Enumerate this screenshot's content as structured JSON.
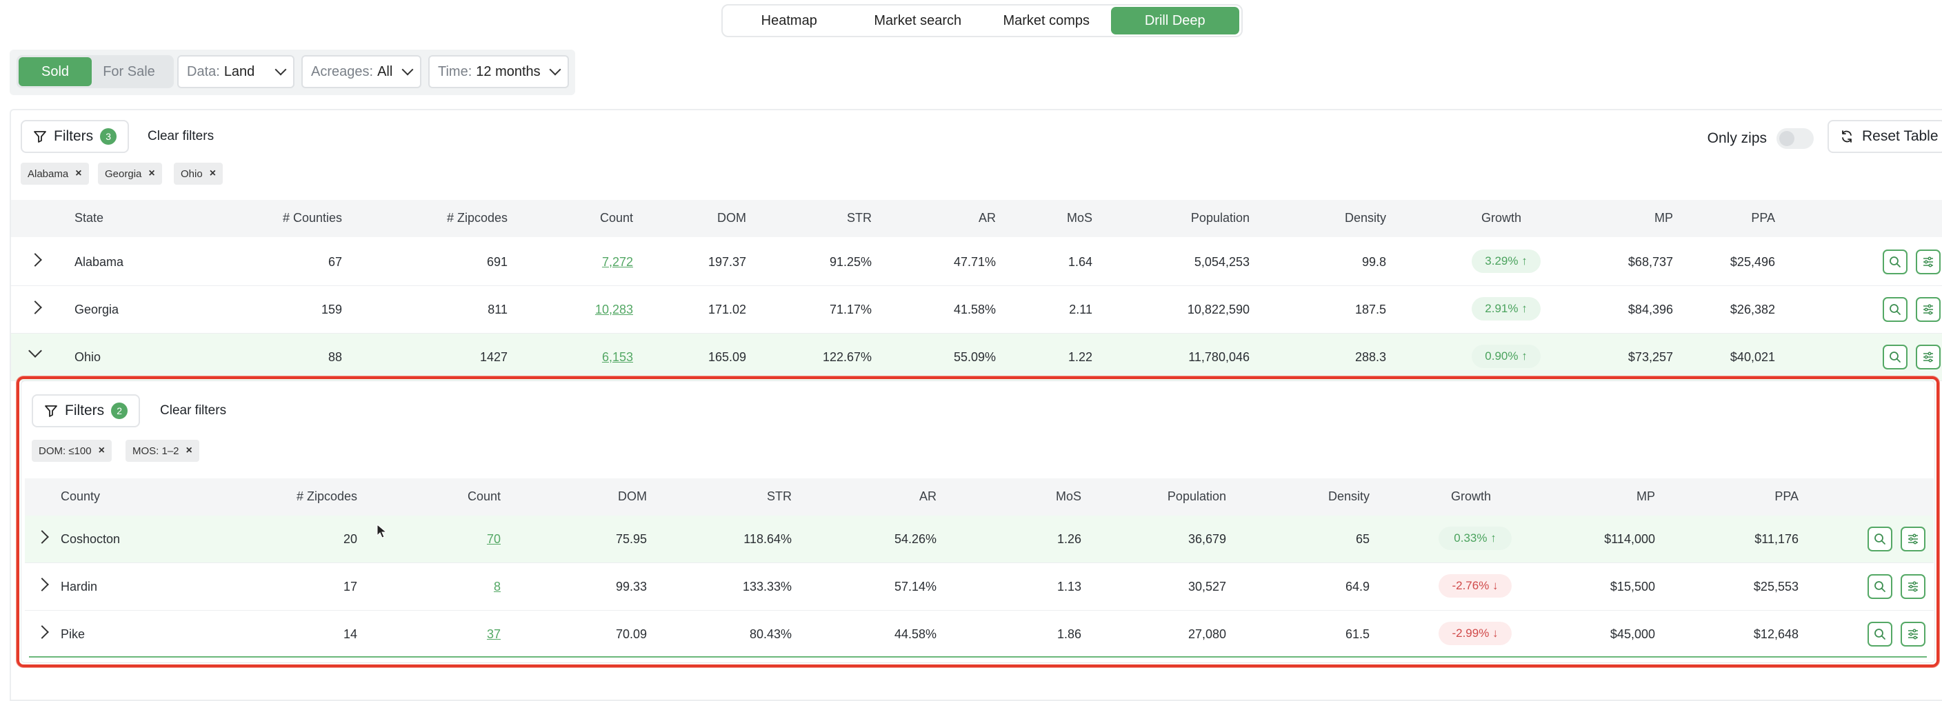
{
  "top_tabs": [
    "Heatmap",
    "Market search",
    "Market comps",
    "Drill Deep"
  ],
  "toggle": {
    "sold": "Sold",
    "for_sale": "For Sale"
  },
  "dropdowns": {
    "data": {
      "label": "Data:",
      "value": "Land"
    },
    "acreages": {
      "label": "Acreages:",
      "value": "All"
    },
    "time": {
      "label": "Time:",
      "value": "12 months"
    }
  },
  "outer_filters": {
    "label": "Filters",
    "count": "3",
    "clear": "Clear filters",
    "chips": [
      "Alabama",
      "Georgia",
      "Ohio"
    ]
  },
  "only_zips": "Only zips",
  "reset_table": "Reset Table",
  "state_table": {
    "columns": [
      "State",
      "# Counties",
      "# Zipcodes",
      "Count",
      "DOM",
      "STR",
      "AR",
      "MoS",
      "Population",
      "Density",
      "Growth",
      "MP",
      "PPA"
    ],
    "rows": [
      {
        "state": "Alabama",
        "counties": "67",
        "zipcodes": "691",
        "count": "7,272",
        "dom": "197.37",
        "str": "91.25%",
        "ar": "47.71%",
        "mos": "1.64",
        "population": "5,054,253",
        "density": "99.8",
        "growth": "3.29% ↑",
        "mp": "$68,737",
        "ppa": "$25,496"
      },
      {
        "state": "Georgia",
        "counties": "159",
        "zipcodes": "811",
        "count": "10,283",
        "dom": "171.02",
        "str": "71.17%",
        "ar": "41.58%",
        "mos": "2.11",
        "population": "10,822,590",
        "density": "187.5",
        "growth": "2.91% ↑",
        "mp": "$84,396",
        "ppa": "$26,382"
      },
      {
        "state": "Ohio",
        "counties": "88",
        "zipcodes": "1427",
        "count": "6,153",
        "dom": "165.09",
        "str": "122.67%",
        "ar": "55.09%",
        "mos": "1.22",
        "population": "11,780,046",
        "density": "288.3",
        "growth": "0.90% ↑",
        "mp": "$73,257",
        "ppa": "$40,021"
      }
    ]
  },
  "inner_filters": {
    "label": "Filters",
    "count": "2",
    "clear": "Clear filters",
    "chips": [
      "DOM: ≤100",
      "MOS: 1–2"
    ]
  },
  "county_table": {
    "columns": [
      "County",
      "# Zipcodes",
      "Count",
      "DOM",
      "STR",
      "AR",
      "MoS",
      "Population",
      "Density",
      "Growth",
      "MP",
      "PPA"
    ],
    "rows": [
      {
        "county": "Coshocton",
        "zipcodes": "20",
        "count": "70",
        "dom": "75.95",
        "str": "118.64%",
        "ar": "54.26%",
        "mos": "1.26",
        "population": "36,679",
        "density": "65",
        "growth": "0.33% ↑",
        "mp": "$114,000",
        "ppa": "$11,176"
      },
      {
        "county": "Hardin",
        "zipcodes": "17",
        "count": "8",
        "dom": "99.33",
        "str": "133.33%",
        "ar": "57.14%",
        "mos": "1.13",
        "population": "30,527",
        "density": "64.9",
        "growth": "-2.76% ↓",
        "mp": "$15,500",
        "ppa": "$25,553"
      },
      {
        "county": "Pike",
        "zipcodes": "14",
        "count": "37",
        "dom": "70.09",
        "str": "80.43%",
        "ar": "44.58%",
        "mos": "1.86",
        "population": "27,080",
        "density": "61.5",
        "growth": "-2.99% ↓",
        "mp": "$45,000",
        "ppa": "$12,648"
      }
    ]
  },
  "colors": {
    "accent": "#54a865",
    "highlight_row": "#f0faf1",
    "outline": "#e53a2a",
    "negative": "#d04a4a"
  }
}
